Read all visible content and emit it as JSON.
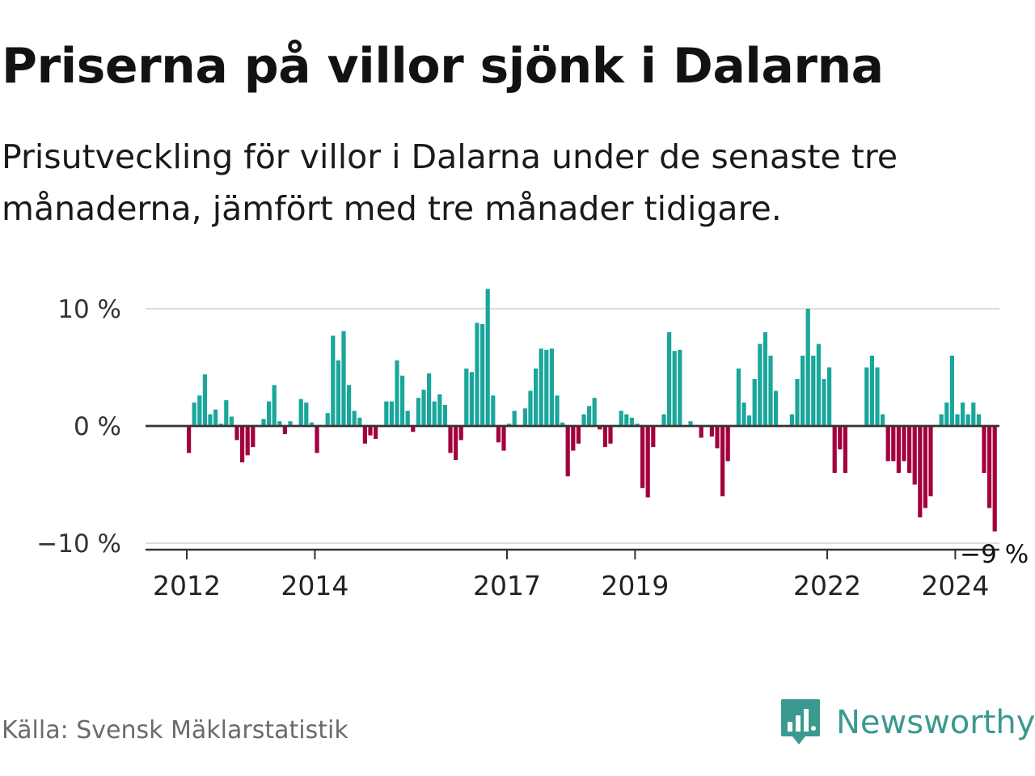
{
  "title": "Priserna på villor sjönk i Dalarna",
  "subtitle": "Prisutveckling för villor i Dalarna under de senaste tre månaderna, jämfört med tre månader tidigare.",
  "source": "Källa: Svensk Mäklarstatistik",
  "brand": "Newsworthy",
  "colors": {
    "positive": "#1aa69b",
    "negative": "#a3003f",
    "grid": "#dddddd",
    "axis": "#333333",
    "brand": "#3a9a8f"
  },
  "chart_data": {
    "type": "bar",
    "title": "Priserna på villor sjönk i Dalarna",
    "xlabel": "",
    "ylabel": "",
    "ylim": [
      -10.5,
      11.5
    ],
    "y_ticks": [
      {
        "value": 10,
        "label": "10 %"
      },
      {
        "value": 0,
        "label": "0 %"
      },
      {
        "value": -10,
        "label": "−10 %"
      }
    ],
    "x_ticks": [
      {
        "label": "2012",
        "index": 0
      },
      {
        "label": "2014",
        "index": 24
      },
      {
        "label": "2017",
        "index": 60
      },
      {
        "label": "2019",
        "index": 84
      },
      {
        "label": "2022",
        "index": 120
      },
      {
        "label": "2024",
        "index": 144
      }
    ],
    "period": "monthly, Jan 2012 – Apr 2024",
    "last_value_label": "−9 %",
    "values": [
      -2.3,
      2.0,
      2.6,
      4.4,
      1.0,
      1.4,
      0.2,
      2.2,
      0.8,
      -1.2,
      -3.1,
      -2.5,
      -1.8,
      0.1,
      0.6,
      2.1,
      3.5,
      0.4,
      -0.7,
      0.4,
      0.0,
      2.3,
      2.0,
      0.3,
      -2.3,
      0.0,
      1.1,
      7.7,
      5.6,
      8.1,
      3.5,
      1.3,
      0.7,
      -1.5,
      -0.8,
      -1.1,
      0.0,
      2.1,
      2.1,
      5.6,
      4.3,
      1.3,
      -0.5,
      2.4,
      3.1,
      4.5,
      2.1,
      2.7,
      1.8,
      -2.3,
      -2.9,
      -1.2,
      4.9,
      4.6,
      8.8,
      8.7,
      11.7,
      2.6,
      -1.4,
      -2.1,
      0.2,
      1.3,
      0.0,
      1.5,
      3.0,
      4.9,
      6.6,
      6.5,
      6.6,
      2.6,
      0.3,
      -4.3,
      -2.1,
      -1.5,
      1.0,
      1.7,
      2.4,
      -0.3,
      -1.8,
      -1.5,
      0.0,
      1.3,
      1.0,
      0.7,
      0.2,
      -5.3,
      -6.1,
      -1.8,
      0.0,
      1.0,
      8.0,
      6.4,
      6.5,
      0.0,
      0.4,
      0.0,
      -1.0,
      0.0,
      -0.9,
      -1.9,
      -6.0,
      -3.0,
      0.0,
      4.9,
      2.0,
      0.9,
      4.0,
      7.0,
      8.0,
      6.0,
      3.0,
      0.0,
      0.0,
      1.0,
      4.0,
      6.0,
      10.0,
      6.0,
      7.0,
      4.0,
      5.0,
      -4.0,
      -2.0,
      -4.0,
      0.0,
      0.0,
      0.0,
      5.0,
      6.0,
      5.0,
      1.0,
      -3.0,
      -3.0,
      -4.0,
      -3.0,
      -4.0,
      -5.0,
      -7.8,
      -7.0,
      -6.0,
      0.0,
      1.0,
      2.0,
      6.0,
      1.0,
      2.0,
      1.0,
      2.0,
      1.0,
      -4.0,
      -7.0,
      -9.0
    ]
  }
}
